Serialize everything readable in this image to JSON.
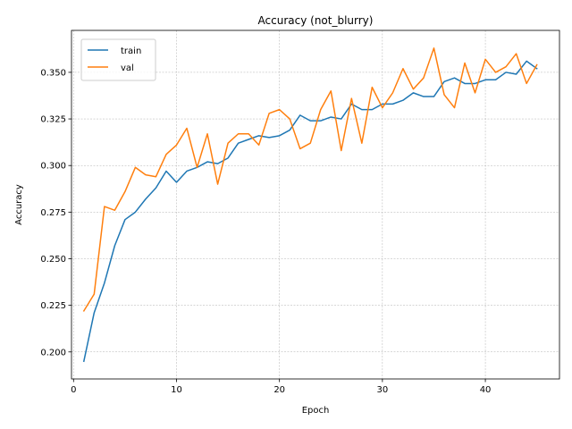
{
  "chart_data": {
    "type": "line",
    "title": "Accuracy (not_blurry)",
    "xlabel": "Epoch",
    "ylabel": "Accuracy",
    "xlim": [
      -0.2,
      47.2
    ],
    "ylim": [
      0.1855,
      0.3725
    ],
    "x_ticks": [
      0,
      10,
      20,
      30,
      40
    ],
    "y_ticks": [
      0.2,
      0.225,
      0.25,
      0.275,
      0.3,
      0.325,
      0.35
    ],
    "y_tick_labels": [
      "0.200",
      "0.225",
      "0.250",
      "0.275",
      "0.300",
      "0.325",
      "0.350"
    ],
    "grid": true,
    "legend_position": "top-left",
    "x": [
      1,
      2,
      3,
      4,
      5,
      6,
      7,
      8,
      9,
      10,
      11,
      12,
      13,
      14,
      15,
      16,
      17,
      18,
      19,
      20,
      21,
      22,
      23,
      24,
      25,
      26,
      27,
      28,
      29,
      30,
      31,
      32,
      33,
      34,
      35,
      36,
      37,
      38,
      39,
      40,
      41,
      42,
      43,
      44,
      45
    ],
    "series": [
      {
        "name": "train",
        "color": "#1f77b4",
        "values": [
          0.195,
          0.221,
          0.237,
          0.257,
          0.271,
          0.275,
          0.282,
          0.288,
          0.297,
          0.291,
          0.297,
          0.299,
          0.302,
          0.301,
          0.304,
          0.312,
          0.314,
          0.316,
          0.315,
          0.316,
          0.319,
          0.327,
          0.324,
          0.324,
          0.326,
          0.325,
          0.333,
          0.33,
          0.33,
          0.333,
          0.333,
          0.335,
          0.339,
          0.337,
          0.337,
          0.345,
          0.347,
          0.344,
          0.344,
          0.346,
          0.346,
          0.35,
          0.349,
          0.356,
          0.352
        ]
      },
      {
        "name": "val",
        "color": "#ff7f0e",
        "values": [
          0.222,
          0.231,
          0.278,
          0.276,
          0.286,
          0.299,
          0.295,
          0.294,
          0.306,
          0.311,
          0.32,
          0.299,
          0.317,
          0.29,
          0.312,
          0.317,
          0.317,
          0.311,
          0.328,
          0.33,
          0.325,
          0.309,
          0.312,
          0.33,
          0.34,
          0.308,
          0.336,
          0.312,
          0.342,
          0.331,
          0.339,
          0.352,
          0.341,
          0.347,
          0.363,
          0.338,
          0.331,
          0.355,
          0.339,
          0.357,
          0.35,
          0.353,
          0.36,
          0.344,
          0.354
        ]
      }
    ]
  }
}
